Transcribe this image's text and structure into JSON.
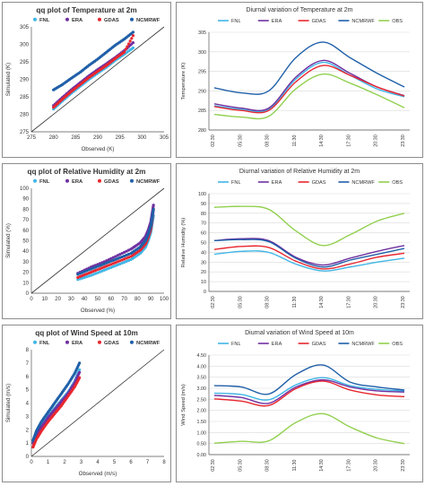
{
  "colors": {
    "FNL": "#41b6e6",
    "ERA": "#7030a0",
    "GDAS": "#e8262e",
    "NCMRWF": "#1f5fa8",
    "OBS": "#92d050",
    "identity_line": "#333333"
  },
  "chart_data": [
    {
      "type": "scatter",
      "title": "qq plot of Temperature at 2m",
      "xlabel": "Observed (K)",
      "ylabel": "Simulated (K)",
      "xlim": [
        275,
        305
      ],
      "ylim": [
        275,
        305
      ],
      "xticks": [
        275,
        280,
        285,
        290,
        295,
        300,
        305
      ],
      "yticks": [
        275,
        280,
        285,
        290,
        295,
        300,
        305
      ],
      "grid": false,
      "legend": "top",
      "legend_marker": "dot",
      "identity_line": true,
      "series": [
        {
          "name": "FNL",
          "x": [
            280,
            282,
            284,
            286,
            288,
            290,
            292,
            294,
            296,
            298
          ],
          "y": [
            281.5,
            283.8,
            286.0,
            288.0,
            290.0,
            291.8,
            293.5,
            295.5,
            297.2,
            299.0
          ]
        },
        {
          "name": "ERA",
          "x": [
            280,
            282,
            284,
            286,
            288,
            290,
            292,
            294,
            296,
            298
          ],
          "y": [
            282.5,
            284.8,
            287.0,
            289.0,
            291.0,
            292.8,
            294.5,
            296.3,
            298.2,
            300.5
          ]
        },
        {
          "name": "GDAS",
          "x": [
            280,
            282,
            284,
            286,
            288,
            290,
            292,
            294,
            296,
            298
          ],
          "y": [
            282.0,
            284.3,
            286.5,
            288.5,
            290.5,
            292.3,
            294.0,
            296.0,
            297.8,
            302.5
          ]
        },
        {
          "name": "NCMRWF",
          "x": [
            280,
            282,
            284,
            286,
            288,
            290,
            292,
            294,
            296,
            298
          ],
          "y": [
            287.0,
            288.5,
            290.3,
            292.0,
            294.0,
            295.8,
            297.8,
            299.8,
            301.5,
            303.5
          ]
        }
      ]
    },
    {
      "type": "line",
      "title": "Diurnal variation of Temperature at 2m",
      "xlabel": "",
      "ylabel": "Temperature (K)",
      "categories": [
        "02:30",
        "05:30",
        "08:30",
        "11:30",
        "14:30",
        "17:30",
        "20:30",
        "23:30"
      ],
      "ylim": [
        280,
        305
      ],
      "yticks": [
        280,
        285,
        290,
        295,
        300,
        305
      ],
      "grid": true,
      "legend": "top",
      "series": [
        {
          "name": "FNL",
          "values": [
            286.2,
            285.3,
            285.3,
            293.0,
            297.3,
            294.0,
            290.5,
            288.5
          ]
        },
        {
          "name": "ERA",
          "values": [
            286.7,
            285.6,
            285.6,
            293.5,
            297.8,
            294.5,
            291.0,
            288.8
          ]
        },
        {
          "name": "GDAS",
          "values": [
            286.0,
            285.0,
            285.0,
            292.3,
            296.5,
            294.0,
            291.0,
            288.7
          ]
        },
        {
          "name": "NCMRWF",
          "values": [
            290.8,
            289.5,
            290.0,
            298.5,
            302.5,
            298.5,
            294.5,
            291.0
          ]
        },
        {
          "name": "OBS",
          "values": [
            284.0,
            283.3,
            283.5,
            290.5,
            294.3,
            292.0,
            289.0,
            285.7
          ]
        }
      ]
    },
    {
      "type": "scatter",
      "title": "qq plot of Relative Humidity at 2m",
      "xlabel": "Observed (%)",
      "ylabel": "Simulated (%)",
      "xlim": [
        0,
        100
      ],
      "ylim": [
        0,
        100
      ],
      "xticks": [
        0,
        10,
        20,
        30,
        40,
        50,
        60,
        70,
        80,
        90,
        100
      ],
      "yticks": [
        0,
        10,
        20,
        30,
        40,
        50,
        60,
        70,
        80,
        90,
        100
      ],
      "grid": false,
      "legend": "top",
      "legend_marker": "dot",
      "identity_line": true,
      "series": [
        {
          "name": "FNL",
          "x": [
            35,
            45,
            55,
            65,
            75,
            82,
            86,
            88,
            90,
            91,
            92
          ],
          "y": [
            13,
            17,
            22,
            27,
            32,
            38,
            44,
            50,
            58,
            66,
            74
          ]
        },
        {
          "name": "ERA",
          "x": [
            35,
            45,
            55,
            65,
            75,
            82,
            86,
            88,
            90,
            91,
            92
          ],
          "y": [
            19,
            25,
            30,
            36,
            42,
            48,
            54,
            60,
            68,
            76,
            84
          ]
        },
        {
          "name": "GDAS",
          "x": [
            35,
            45,
            55,
            65,
            75,
            82,
            86,
            88,
            90,
            91,
            92
          ],
          "y": [
            15,
            20,
            25,
            30,
            35,
            41,
            47,
            53,
            61,
            70,
            80
          ]
        },
        {
          "name": "NCMRWF",
          "x": [
            35,
            45,
            55,
            65,
            75,
            82,
            86,
            88,
            90,
            91,
            92
          ],
          "y": [
            18,
            23,
            28,
            33,
            38,
            44,
            50,
            56,
            64,
            72,
            80
          ]
        }
      ]
    },
    {
      "type": "line",
      "title": "Diurnal variation of Relative Humidity at 2m",
      "xlabel": "",
      "ylabel": "Relative Humidity (%)",
      "categories": [
        "02:30",
        "05:30",
        "08:30",
        "11:30",
        "14:30",
        "17:30",
        "20:30",
        "23:30"
      ],
      "ylim": [
        0,
        100
      ],
      "yticks": [
        0,
        10,
        20,
        30,
        40,
        50,
        60,
        70,
        80,
        90,
        100
      ],
      "grid": true,
      "legend": "top",
      "series": [
        {
          "name": "FNL",
          "values": [
            38,
            41,
            40,
            28,
            21,
            25,
            30,
            34
          ]
        },
        {
          "name": "ERA",
          "values": [
            52,
            54,
            52,
            35,
            27,
            34,
            41,
            47
          ]
        },
        {
          "name": "GDAS",
          "values": [
            43,
            46,
            45,
            31,
            23,
            28,
            35,
            39
          ]
        },
        {
          "name": "NCMRWF",
          "values": [
            52,
            53,
            51,
            34,
            25,
            32,
            38,
            44
          ]
        },
        {
          "name": "OBS",
          "values": [
            86,
            87,
            84,
            62,
            47,
            58,
            72,
            80
          ]
        }
      ]
    },
    {
      "type": "scatter",
      "title": "qq plot of Wind Speed at 10m",
      "xlabel": "Observed (m/s)",
      "ylabel": "Simulated (m/s)",
      "xlim": [
        0,
        8
      ],
      "ylim": [
        0,
        8
      ],
      "xticks": [
        0,
        1,
        2,
        3,
        4,
        5,
        6,
        7,
        8
      ],
      "yticks": [
        0,
        1,
        2,
        3,
        4,
        5,
        6,
        7,
        8
      ],
      "grid": false,
      "legend": "top",
      "legend_marker": "dot",
      "identity_line": true,
      "series": [
        {
          "name": "FNL",
          "x": [
            0.1,
            0.3,
            0.6,
            1.0,
            1.4,
            1.8,
            2.2,
            2.6,
            2.9
          ],
          "y": [
            1.0,
            1.7,
            2.3,
            3.0,
            3.6,
            4.2,
            4.8,
            5.6,
            6.5
          ]
        },
        {
          "name": "ERA",
          "x": [
            0.1,
            0.3,
            0.6,
            1.0,
            1.4,
            1.8,
            2.2,
            2.6,
            2.9
          ],
          "y": [
            1.0,
            1.6,
            2.2,
            2.9,
            3.5,
            4.1,
            4.7,
            5.5,
            6.3
          ]
        },
        {
          "name": "GDAS",
          "x": [
            0.1,
            0.3,
            0.6,
            1.0,
            1.4,
            1.8,
            2.2,
            2.6,
            2.9
          ],
          "y": [
            0.7,
            1.3,
            1.9,
            2.6,
            3.2,
            3.8,
            4.5,
            5.2,
            5.9
          ]
        },
        {
          "name": "NCMRWF",
          "x": [
            0.1,
            0.3,
            0.6,
            1.0,
            1.4,
            1.8,
            2.2,
            2.6,
            2.9
          ],
          "y": [
            1.2,
            1.9,
            2.6,
            3.3,
            4.0,
            4.7,
            5.4,
            6.2,
            7.0
          ]
        }
      ]
    },
    {
      "type": "line",
      "title": "Diurnal variation of Wind Speed at 10m",
      "xlabel": "",
      "ylabel": "Wind Speed (m/s)",
      "categories": [
        "02:30",
        "05:30",
        "08:30",
        "11:30",
        "14:30",
        "17:30",
        "20:30",
        "23:30"
      ],
      "ylim": [
        0,
        4.5
      ],
      "yticks": [
        0.0,
        0.5,
        1.0,
        1.5,
        2.0,
        2.5,
        3.0,
        3.5,
        4.0,
        4.5
      ],
      "ytick_decimals": 2,
      "grid": true,
      "legend": "top",
      "series": [
        {
          "name": "FNL",
          "values": [
            2.78,
            2.72,
            2.48,
            3.15,
            3.48,
            3.12,
            2.95,
            2.87
          ]
        },
        {
          "name": "ERA",
          "values": [
            2.68,
            2.58,
            2.32,
            3.05,
            3.38,
            3.06,
            2.88,
            2.83
          ]
        },
        {
          "name": "GDAS",
          "values": [
            2.52,
            2.42,
            2.22,
            2.98,
            3.32,
            2.92,
            2.7,
            2.62
          ]
        },
        {
          "name": "NCMRWF",
          "values": [
            3.12,
            3.06,
            2.74,
            3.62,
            4.05,
            3.28,
            3.06,
            2.92
          ]
        },
        {
          "name": "OBS",
          "values": [
            0.52,
            0.6,
            0.62,
            1.45,
            1.85,
            1.25,
            0.75,
            0.5
          ]
        }
      ]
    }
  ]
}
